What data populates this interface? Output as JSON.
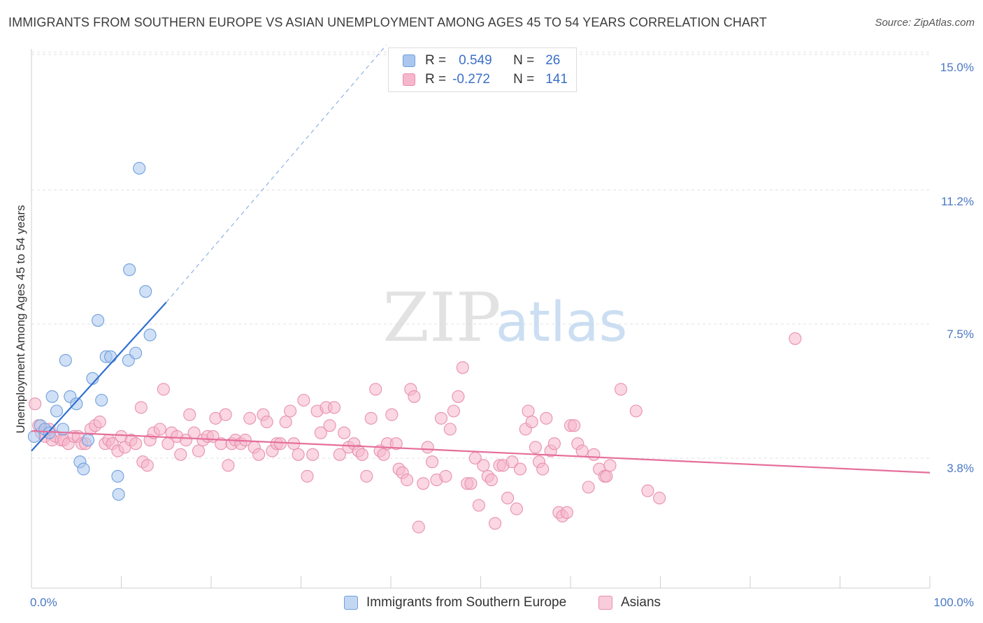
{
  "header": {
    "title": "IMMIGRANTS FROM SOUTHERN EUROPE VS ASIAN UNEMPLOYMENT AMONG AGES 45 TO 54 YEARS CORRELATION CHART",
    "source": "Source: ZipAtlas.com"
  },
  "watermark": {
    "zip": "ZIP",
    "atlas": "atlas"
  },
  "legend": {
    "r_label": "R =",
    "n_label": "N =",
    "rows": [
      {
        "r": "0.549",
        "n": "26"
      },
      {
        "r": "-0.272",
        "n": "141"
      }
    ]
  },
  "colors": {
    "blue_fill": "#a9c7ef",
    "blue_stroke": "#6f9fdc",
    "blue_line": "#2f6fd0",
    "pink_fill": "#f6b6cb",
    "pink_stroke": "#e890ae",
    "pink_line": "#e56e9a",
    "tick_text": "#4a78c4",
    "grid": "#e2e2e2"
  },
  "chart_data": {
    "type": "scatter",
    "title": "IMMIGRANTS FROM SOUTHERN EUROPE VS ASIAN UNEMPLOYMENT AMONG AGES 45 TO 54 YEARS CORRELATION CHART",
    "xlabel": "",
    "ylabel": "Unemployment Among Ages 45 to 54 years",
    "xlim": [
      0,
      100
    ],
    "ylim": [
      0,
      15.5
    ],
    "x_tick_labels": [
      "0.0%",
      "100.0%"
    ],
    "y_ticks": [
      3.8,
      7.5,
      11.2,
      15.0
    ],
    "y_tick_labels": [
      "3.8%",
      "7.5%",
      "11.2%",
      "15.0%"
    ],
    "series": [
      {
        "name": "Immigrants from Southern Europe",
        "color": "#a9c7ef",
        "trend": {
          "x0": 0,
          "y0": 4.0,
          "x1": 15,
          "y1": 8.1,
          "dashed_to_x": 39.5,
          "dashed_to_y": 15.2
        },
        "points": [
          [
            0.3,
            4.4
          ],
          [
            1.0,
            4.7
          ],
          [
            1.5,
            4.6
          ],
          [
            2.0,
            4.5
          ],
          [
            2.3,
            5.5
          ],
          [
            2.8,
            5.1
          ],
          [
            3.5,
            4.6
          ],
          [
            3.8,
            6.5
          ],
          [
            4.3,
            5.5
          ],
          [
            5.0,
            5.3
          ],
          [
            5.4,
            3.7
          ],
          [
            5.8,
            3.5
          ],
          [
            6.3,
            4.3
          ],
          [
            6.8,
            6.0
          ],
          [
            7.4,
            7.6
          ],
          [
            7.8,
            5.4
          ],
          [
            8.3,
            6.6
          ],
          [
            8.8,
            6.6
          ],
          [
            9.6,
            3.3
          ],
          [
            9.7,
            2.8
          ],
          [
            10.8,
            6.5
          ],
          [
            10.9,
            9.0
          ],
          [
            11.6,
            6.7
          ],
          [
            12.0,
            11.8
          ],
          [
            12.7,
            8.4
          ],
          [
            13.2,
            7.2
          ]
        ]
      },
      {
        "name": "Asians",
        "color": "#f6b6cb",
        "trend": {
          "x0": 0,
          "y0": 4.55,
          "x1": 100,
          "y1": 3.4
        },
        "points": [
          [
            0.4,
            5.3
          ],
          [
            0.8,
            4.7
          ],
          [
            1.1,
            4.5
          ],
          [
            1.5,
            4.4
          ],
          [
            2.0,
            4.6
          ],
          [
            2.3,
            4.3
          ],
          [
            2.7,
            4.4
          ],
          [
            3.3,
            4.3
          ],
          [
            3.6,
            4.3
          ],
          [
            4.1,
            4.2
          ],
          [
            4.7,
            4.4
          ],
          [
            5.2,
            4.4
          ],
          [
            5.6,
            4.2
          ],
          [
            6.0,
            4.2
          ],
          [
            6.6,
            4.6
          ],
          [
            7.1,
            4.7
          ],
          [
            7.6,
            4.8
          ],
          [
            8.2,
            4.2
          ],
          [
            8.6,
            4.3
          ],
          [
            9.0,
            4.2
          ],
          [
            9.6,
            4.0
          ],
          [
            10.0,
            4.4
          ],
          [
            10.4,
            4.1
          ],
          [
            11.1,
            4.3
          ],
          [
            11.6,
            4.2
          ],
          [
            12.2,
            5.2
          ],
          [
            12.4,
            3.7
          ],
          [
            12.9,
            3.6
          ],
          [
            13.2,
            4.3
          ],
          [
            13.6,
            4.5
          ],
          [
            14.3,
            4.6
          ],
          [
            14.7,
            5.7
          ],
          [
            15.2,
            4.2
          ],
          [
            15.6,
            4.5
          ],
          [
            16.2,
            4.4
          ],
          [
            16.6,
            3.9
          ],
          [
            17.2,
            4.3
          ],
          [
            17.6,
            5.0
          ],
          [
            18.1,
            4.5
          ],
          [
            18.6,
            4.0
          ],
          [
            19.1,
            4.3
          ],
          [
            19.6,
            4.4
          ],
          [
            20.2,
            4.4
          ],
          [
            20.5,
            4.9
          ],
          [
            21.1,
            4.2
          ],
          [
            21.6,
            5.0
          ],
          [
            21.9,
            3.6
          ],
          [
            22.3,
            4.2
          ],
          [
            22.7,
            4.3
          ],
          [
            23.3,
            4.2
          ],
          [
            23.8,
            4.3
          ],
          [
            24.3,
            4.9
          ],
          [
            24.8,
            4.1
          ],
          [
            25.3,
            3.9
          ],
          [
            25.8,
            5.0
          ],
          [
            26.2,
            4.8
          ],
          [
            26.8,
            4.0
          ],
          [
            27.3,
            4.2
          ],
          [
            27.7,
            4.2
          ],
          [
            28.3,
            4.8
          ],
          [
            28.8,
            5.1
          ],
          [
            29.2,
            4.2
          ],
          [
            29.7,
            3.9
          ],
          [
            30.3,
            5.4
          ],
          [
            30.7,
            3.3
          ],
          [
            31.3,
            3.9
          ],
          [
            31.8,
            5.1
          ],
          [
            32.2,
            4.5
          ],
          [
            32.8,
            5.2
          ],
          [
            33.2,
            4.7
          ],
          [
            33.7,
            5.2
          ],
          [
            34.3,
            3.9
          ],
          [
            34.8,
            4.5
          ],
          [
            35.3,
            4.1
          ],
          [
            35.9,
            4.2
          ],
          [
            36.4,
            4.0
          ],
          [
            36.8,
            3.9
          ],
          [
            37.3,
            3.3
          ],
          [
            37.8,
            4.9
          ],
          [
            38.3,
            5.7
          ],
          [
            38.8,
            4.0
          ],
          [
            39.2,
            3.9
          ],
          [
            39.6,
            4.2
          ],
          [
            40.1,
            5.0
          ],
          [
            40.6,
            4.2
          ],
          [
            40.9,
            3.5
          ],
          [
            41.3,
            3.4
          ],
          [
            41.8,
            3.2
          ],
          [
            42.2,
            5.7
          ],
          [
            42.6,
            5.5
          ],
          [
            43.1,
            1.9
          ],
          [
            43.6,
            3.1
          ],
          [
            44.1,
            4.1
          ],
          [
            44.6,
            3.7
          ],
          [
            45.1,
            3.2
          ],
          [
            45.6,
            4.9
          ],
          [
            46.1,
            3.3
          ],
          [
            46.6,
            4.6
          ],
          [
            47.0,
            5.1
          ],
          [
            47.5,
            5.5
          ],
          [
            48.0,
            6.3
          ],
          [
            48.5,
            3.1
          ],
          [
            48.9,
            3.1
          ],
          [
            49.4,
            3.8
          ],
          [
            49.8,
            2.5
          ],
          [
            50.3,
            3.6
          ],
          [
            50.8,
            3.3
          ],
          [
            51.2,
            3.2
          ],
          [
            51.6,
            2.0
          ],
          [
            52.1,
            3.6
          ],
          [
            52.5,
            3.6
          ],
          [
            53.0,
            2.7
          ],
          [
            53.5,
            3.7
          ],
          [
            54.0,
            2.4
          ],
          [
            54.4,
            3.5
          ],
          [
            55.0,
            4.6
          ],
          [
            55.3,
            5.1
          ],
          [
            55.7,
            4.8
          ],
          [
            56.1,
            4.1
          ],
          [
            56.5,
            3.7
          ],
          [
            56.9,
            3.5
          ],
          [
            57.3,
            4.9
          ],
          [
            57.8,
            4.0
          ],
          [
            58.2,
            4.2
          ],
          [
            58.7,
            2.3
          ],
          [
            59.1,
            2.2
          ],
          [
            59.6,
            2.3
          ],
          [
            60.0,
            4.7
          ],
          [
            60.4,
            4.7
          ],
          [
            60.8,
            4.2
          ],
          [
            61.3,
            4.0
          ],
          [
            62.0,
            3.0
          ],
          [
            62.6,
            3.9
          ],
          [
            63.2,
            3.5
          ],
          [
            63.8,
            3.3
          ],
          [
            64.0,
            3.3
          ],
          [
            64.4,
            3.6
          ],
          [
            65.6,
            5.7
          ],
          [
            67.3,
            5.1
          ],
          [
            68.6,
            2.9
          ],
          [
            69.9,
            2.7
          ],
          [
            85.0,
            7.1
          ]
        ]
      }
    ]
  },
  "axis": {
    "y_tick_labels": [
      "15.0%",
      "11.2%",
      "7.5%",
      "3.8%"
    ],
    "x_tick_labels": [
      "0.0%",
      "100.0%"
    ],
    "ylabel": "Unemployment Among Ages 45 to 54 years"
  },
  "bottom_legend": {
    "items": [
      {
        "label": "Immigrants from Southern Europe"
      },
      {
        "label": "Asians"
      }
    ]
  }
}
